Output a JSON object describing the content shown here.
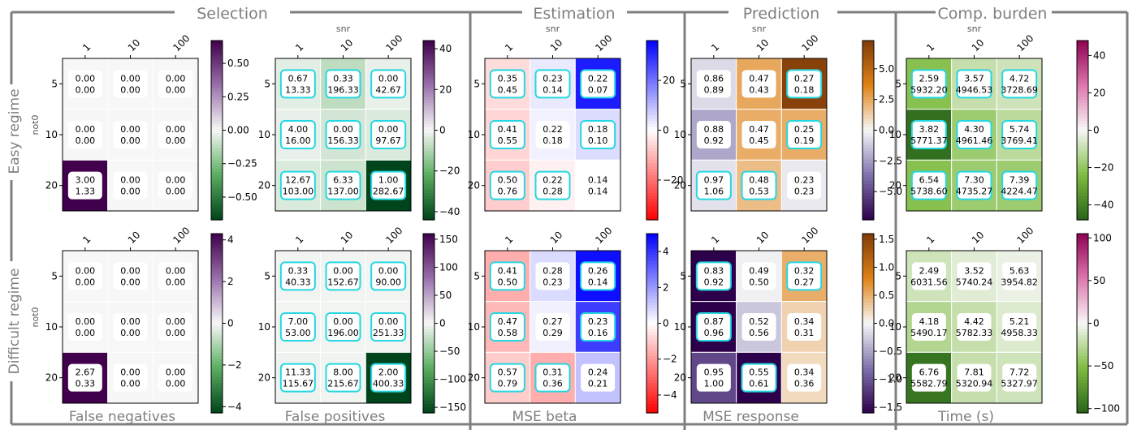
{
  "sections": [
    "Selection",
    "Estimation",
    "Prediction",
    "Comp. burden"
  ],
  "regimes": [
    "Easy regime",
    "Difficult regime"
  ],
  "x_axis_name": "snr",
  "y_axis_name": "not0",
  "colors": {
    "frame": "#7f7f7f",
    "highlight": "#25d7e2"
  },
  "chart_data": [
    {
      "type": "heatmap",
      "panel": "False negatives",
      "regime": "Easy regime",
      "xlabel": "False negatives",
      "x_axis": "snr",
      "y_axis": "not0",
      "x_categories": [
        "1",
        "10",
        "100"
      ],
      "y_categories": [
        "5",
        "10",
        "20"
      ],
      "cells": [
        [
          [
            "0.00",
            "0.00"
          ],
          [
            "0.00",
            "0.00"
          ],
          [
            "0.00",
            "0.00"
          ]
        ],
        [
          [
            "0.00",
            "0.00"
          ],
          [
            "0.00",
            "0.00"
          ],
          [
            "0.00",
            "0.00"
          ]
        ],
        [
          [
            "3.00",
            "1.33"
          ],
          [
            "0.00",
            "0.00"
          ],
          [
            "0.00",
            "0.00"
          ]
        ]
      ],
      "color_values": [
        [
          0,
          0,
          0
        ],
        [
          0,
          0,
          0
        ],
        [
          0.67,
          0,
          0
        ]
      ],
      "highlight": [
        [
          false,
          false,
          false
        ],
        [
          false,
          false,
          false
        ],
        [
          false,
          false,
          false
        ]
      ],
      "colormap": "PRGn_r",
      "vlim": [
        -0.67,
        0.67
      ],
      "colorbar_ticks": [
        "0.50",
        "0.25",
        "0.00",
        "−0.25",
        "−0.50"
      ],
      "colorbar_tick_values": [
        0.5,
        0.25,
        0,
        -0.25,
        -0.5
      ]
    },
    {
      "type": "heatmap",
      "panel": "False positives",
      "regime": "Easy regime",
      "xlabel": "False positives",
      "x_axis": "snr",
      "y_axis": "not0",
      "x_categories": [
        "1",
        "10",
        "100"
      ],
      "y_categories": [
        "5",
        "10",
        "20"
      ],
      "cells": [
        [
          [
            "0.67",
            "13.33"
          ],
          [
            "0.33",
            "196.33"
          ],
          [
            "0.00",
            "42.67"
          ]
        ],
        [
          [
            "4.00",
            "16.00"
          ],
          [
            "0.00",
            "156.33"
          ],
          [
            "0.00",
            "97.67"
          ]
        ],
        [
          [
            "12.67",
            "103.00"
          ],
          [
            "6.33",
            "137.00"
          ],
          [
            "1.00",
            "282.67"
          ]
        ]
      ],
      "color_values": [
        [
          -3,
          -8,
          -2
        ],
        [
          -2,
          -5,
          -4
        ],
        [
          -4,
          -6,
          -44
        ]
      ],
      "highlight": [
        [
          true,
          true,
          true
        ],
        [
          true,
          true,
          true
        ],
        [
          true,
          true,
          true
        ]
      ],
      "colormap": "PRGn_r",
      "vlim": [
        -44,
        44
      ],
      "colorbar_ticks": [
        "40",
        "20",
        "0",
        "−20",
        "−40"
      ],
      "colorbar_tick_values": [
        40,
        20,
        0,
        -20,
        -40
      ]
    },
    {
      "type": "heatmap",
      "panel": "MSE beta",
      "regime": "Easy regime",
      "xlabel": "MSE beta",
      "x_axis": "snr",
      "y_axis": "not0",
      "x_categories": [
        "1",
        "10",
        "100"
      ],
      "y_categories": [
        "5",
        "10",
        "20"
      ],
      "cells": [
        [
          [
            "0.35",
            "0.45"
          ],
          [
            "0.23",
            "0.14"
          ],
          [
            "0.22",
            "0.07"
          ]
        ],
        [
          [
            "0.41",
            "0.55"
          ],
          [
            "0.22",
            "0.18"
          ],
          [
            "0.18",
            "0.10"
          ]
        ],
        [
          [
            "0.50",
            "0.76"
          ],
          [
            "0.22",
            "0.28"
          ],
          [
            "0.14",
            "0.14"
          ]
        ]
      ],
      "color_values": [
        [
          -5,
          3,
          32
        ],
        [
          -6,
          2,
          5
        ],
        [
          -7,
          -2,
          0
        ]
      ],
      "highlight": [
        [
          true,
          true,
          true
        ],
        [
          true,
          false,
          true
        ],
        [
          true,
          true,
          false
        ]
      ],
      "colormap": "bwr_r",
      "vlim": [
        -36,
        36
      ],
      "colorbar_ticks": [
        "20",
        "0",
        "−20"
      ],
      "colorbar_tick_values": [
        20,
        0,
        -20
      ]
    },
    {
      "type": "heatmap",
      "panel": "MSE response",
      "regime": "Easy regime",
      "xlabel": "MSE response",
      "x_axis": "snr",
      "y_axis": "not0",
      "x_categories": [
        "1",
        "10",
        "100"
      ],
      "y_categories": [
        "5",
        "10",
        "20"
      ],
      "cells": [
        [
          [
            "0.86",
            "0.89"
          ],
          [
            "0.47",
            "0.43"
          ],
          [
            "0.27",
            "0.18"
          ]
        ],
        [
          [
            "0.88",
            "0.92"
          ],
          [
            "0.47",
            "0.45"
          ],
          [
            "0.25",
            "0.19"
          ]
        ],
        [
          [
            "0.97",
            "1.06"
          ],
          [
            "0.48",
            "0.53"
          ],
          [
            "0.23",
            "0.23"
          ]
        ]
      ],
      "color_values": [
        [
          -0.8,
          2.5,
          7
        ],
        [
          -2.2,
          2.3,
          2.3
        ],
        [
          -0.6,
          1.8,
          -0.4
        ]
      ],
      "highlight": [
        [
          false,
          false,
          true
        ],
        [
          false,
          false,
          true
        ],
        [
          true,
          true,
          false
        ]
      ],
      "colormap": "PuOr",
      "vlim": [
        -7.3,
        7.3
      ],
      "colorbar_ticks": [
        "5.0",
        "2.5",
        "0.0",
        "−2.5",
        "−5.0"
      ],
      "colorbar_tick_values": [
        5,
        2.5,
        0,
        -2.5,
        -5
      ]
    },
    {
      "type": "heatmap",
      "panel": "Time (s)",
      "regime": "Easy regime",
      "xlabel": "Time (s)",
      "x_axis": "snr",
      "y_axis": "not0",
      "x_categories": [
        "1",
        "10",
        "100"
      ],
      "y_categories": [
        "5",
        "10",
        "20"
      ],
      "cells": [
        [
          [
            "2.59",
            "5932.20"
          ],
          [
            "3.57",
            "4946.53"
          ],
          [
            "4.72",
            "3728.69"
          ]
        ],
        [
          [
            "3.82",
            "5771.37"
          ],
          [
            "4.30",
            "4961.46"
          ],
          [
            "5.74",
            "3769.41"
          ]
        ],
        [
          [
            "6.54",
            "5738.60"
          ],
          [
            "7.30",
            "4735.27"
          ],
          [
            "7.39",
            "4224.47"
          ]
        ]
      ],
      "color_values": [
        [
          -22,
          -10,
          -8
        ],
        [
          -45,
          -18,
          -12
        ],
        [
          -22,
          -18,
          -18
        ]
      ],
      "highlight": [
        [
          true,
          true,
          true
        ],
        [
          true,
          true,
          true
        ],
        [
          true,
          true,
          true
        ]
      ],
      "colormap": "PiYG",
      "vlim": [
        -48,
        48
      ],
      "colorbar_ticks": [
        "40",
        "20",
        "0",
        "−20",
        "−40"
      ],
      "colorbar_tick_values": [
        40,
        20,
        0,
        -20,
        -40
      ]
    },
    {
      "type": "heatmap",
      "panel": "False negatives",
      "regime": "Difficult regime",
      "xlabel": "False negatives",
      "x_axis": "snr",
      "y_axis": "not0",
      "x_categories": [
        "1",
        "10",
        "100"
      ],
      "y_categories": [
        "5",
        "10",
        "20"
      ],
      "cells": [
        [
          [
            "0.00",
            "0.00"
          ],
          [
            "0.00",
            "0.00"
          ],
          [
            "0.00",
            "0.00"
          ]
        ],
        [
          [
            "0.00",
            "0.00"
          ],
          [
            "0.00",
            "0.00"
          ],
          [
            "0.00",
            "0.00"
          ]
        ],
        [
          [
            "2.67",
            "0.33"
          ],
          [
            "0.00",
            "0.00"
          ],
          [
            "0.00",
            "0.00"
          ]
        ]
      ],
      "color_values": [
        [
          0,
          0,
          0
        ],
        [
          0,
          0,
          0
        ],
        [
          5,
          0,
          0
        ]
      ],
      "highlight": [
        [
          false,
          false,
          false
        ],
        [
          false,
          false,
          false
        ],
        [
          false,
          false,
          false
        ]
      ],
      "colormap": "PRGn_r",
      "vlim": [
        -4.3,
        4.3
      ],
      "colorbar_ticks": [
        "4",
        "2",
        "0",
        "−2",
        "−4"
      ],
      "colorbar_tick_values": [
        4,
        2,
        0,
        -2,
        -4
      ]
    },
    {
      "type": "heatmap",
      "panel": "False positives",
      "regime": "Difficult regime",
      "xlabel": "False positives",
      "x_axis": "snr",
      "y_axis": "not0",
      "x_categories": [
        "1",
        "10",
        "100"
      ],
      "y_categories": [
        "5",
        "10",
        "20"
      ],
      "cells": [
        [
          [
            "0.33",
            "40.33"
          ],
          [
            "0.00",
            "152.67"
          ],
          [
            "0.00",
            "90.00"
          ]
        ],
        [
          [
            "7.00",
            "53.00"
          ],
          [
            "0.00",
            "196.00"
          ],
          [
            "0.00",
            "251.33"
          ]
        ],
        [
          [
            "11.33",
            "115.67"
          ],
          [
            "8.00",
            "215.67"
          ],
          [
            "2.00",
            "400.33"
          ]
        ]
      ],
      "color_values": [
        [
          -3,
          -3,
          -3
        ],
        [
          -3,
          -3,
          -3
        ],
        [
          -4,
          -3,
          -160
        ]
      ],
      "highlight": [
        [
          true,
          true,
          true
        ],
        [
          true,
          true,
          true
        ],
        [
          true,
          true,
          true
        ]
      ],
      "colormap": "PRGn_r",
      "vlim": [
        -160,
        160
      ],
      "colorbar_ticks": [
        "150",
        "100",
        "50",
        "0",
        "−50",
        "−100",
        "−150"
      ],
      "colorbar_tick_values": [
        150,
        100,
        50,
        0,
        -50,
        -100,
        -150
      ]
    },
    {
      "type": "heatmap",
      "panel": "MSE beta",
      "regime": "Difficult regime",
      "xlabel": "MSE beta",
      "x_axis": "snr",
      "y_axis": "not0",
      "x_categories": [
        "1",
        "10",
        "100"
      ],
      "y_categories": [
        "5",
        "10",
        "20"
      ],
      "cells": [
        [
          [
            "0.41",
            "0.50"
          ],
          [
            "0.28",
            "0.23"
          ],
          [
            "0.26",
            "0.14"
          ]
        ],
        [
          [
            "0.47",
            "0.58"
          ],
          [
            "0.27",
            "0.29"
          ],
          [
            "0.23",
            "0.16"
          ]
        ],
        [
          [
            "0.57",
            "0.79"
          ],
          [
            "0.31",
            "0.36"
          ],
          [
            "0.24",
            "0.21"
          ]
        ]
      ],
      "color_values": [
        [
          -1.6,
          0.7,
          4.7
        ],
        [
          -1.4,
          0.3,
          3.8
        ],
        [
          -1,
          -1.6,
          1.2
        ]
      ],
      "highlight": [
        [
          true,
          false,
          true
        ],
        [
          true,
          false,
          true
        ],
        [
          true,
          true,
          false
        ]
      ],
      "colormap": "bwr_r",
      "vlim": [
        -5,
        5
      ],
      "colorbar_ticks": [
        "4",
        "2",
        "0",
        "−2",
        "−4"
      ],
      "colorbar_tick_values": [
        4,
        2,
        0,
        -2,
        -4
      ]
    },
    {
      "type": "heatmap",
      "panel": "MSE response",
      "regime": "Difficult regime",
      "xlabel": "MSE response",
      "x_axis": "snr",
      "y_axis": "not0",
      "x_categories": [
        "1",
        "10",
        "100"
      ],
      "y_categories": [
        "5",
        "10",
        "20"
      ],
      "cells": [
        [
          [
            "0.83",
            "0.92"
          ],
          [
            "0.49",
            "0.50"
          ],
          [
            "0.32",
            "0.27"
          ]
        ],
        [
          [
            "0.87",
            "0.96"
          ],
          [
            "0.52",
            "0.56"
          ],
          [
            "0.34",
            "0.31"
          ]
        ],
        [
          [
            "0.95",
            "1.00"
          ],
          [
            "0.55",
            "0.61"
          ],
          [
            "0.34",
            "0.36"
          ]
        ]
      ],
      "color_values": [
        [
          -1.6,
          -0.05,
          0.5
        ],
        [
          -1.6,
          -0.3,
          0.25
        ],
        [
          -1.1,
          -1.6,
          0.2
        ]
      ],
      "highlight": [
        [
          true,
          false,
          true
        ],
        [
          true,
          false,
          false
        ],
        [
          false,
          true,
          false
        ]
      ],
      "colormap": "PuOr",
      "vlim": [
        -1.6,
        1.6
      ],
      "colorbar_ticks": [
        "1.5",
        "1.0",
        "0.5",
        "0.0",
        "−0.5",
        "−1.0",
        "−1.5"
      ],
      "colorbar_tick_values": [
        1.5,
        1,
        0.5,
        0,
        -0.5,
        -1,
        -1.5
      ]
    },
    {
      "type": "heatmap",
      "panel": "Time (s)",
      "regime": "Difficult regime",
      "xlabel": "Time (s)",
      "x_axis": "snr",
      "y_axis": "not0",
      "x_categories": [
        "1",
        "10",
        "100"
      ],
      "y_categories": [
        "5",
        "10",
        "20"
      ],
      "cells": [
        [
          [
            "2.49",
            "6031.56"
          ],
          [
            "3.52",
            "5740.24"
          ],
          [
            "5.63",
            "3954.82"
          ]
        ],
        [
          [
            "4.18",
            "5490.17"
          ],
          [
            "4.42",
            "5782.33"
          ],
          [
            "5.21",
            "4958.33"
          ]
        ],
        [
          [
            "6.76",
            "5582.79"
          ],
          [
            "7.81",
            "5320.94"
          ],
          [
            "7.72",
            "5327.97"
          ]
        ]
      ],
      "color_values": [
        [
          -18,
          -10,
          -5
        ],
        [
          -30,
          -22,
          -12
        ],
        [
          -95,
          -22,
          -18
        ]
      ],
      "highlight": [
        [
          false,
          false,
          false
        ],
        [
          false,
          false,
          false
        ],
        [
          false,
          false,
          false
        ]
      ],
      "colormap": "PiYG",
      "vlim": [
        -105,
        105
      ],
      "colorbar_ticks": [
        "100",
        "50",
        "0",
        "−50",
        "−100"
      ],
      "colorbar_tick_values": [
        100,
        50,
        0,
        -50,
        -100
      ]
    }
  ]
}
